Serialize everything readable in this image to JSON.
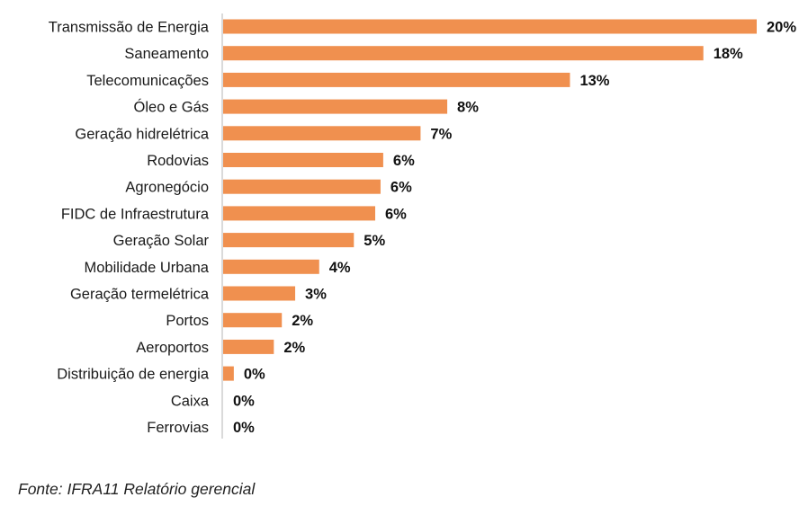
{
  "chart_data": {
    "type": "bar",
    "orientation": "horizontal",
    "categories": [
      "Transmissão de Energia",
      "Saneamento",
      "Telecomunicações",
      "Óleo e Gás",
      "Geração hidrelétrica",
      "Rodovias",
      "Agronegócio",
      "FIDC de Infraestrutura",
      "Geração Solar",
      "Mobilidade Urbana",
      "Geração termelétrica",
      "Portos",
      "Aeroportos",
      "Distribuição de energia",
      "Caixa",
      "Ferrovias"
    ],
    "values": [
      20.0,
      18.0,
      13.0,
      8.4,
      7.4,
      6.0,
      5.9,
      5.7,
      4.9,
      3.6,
      2.7,
      2.2,
      1.9,
      0.4,
      0.0,
      0.0
    ],
    "data_labels": [
      "20%",
      "18%",
      "13%",
      "8%",
      "7%",
      "6%",
      "6%",
      "6%",
      "5%",
      "4%",
      "3%",
      "2%",
      "2%",
      "0%",
      "0%",
      "0%"
    ],
    "xlim": [
      0,
      20
    ],
    "grid": false,
    "legend": "none",
    "bar_color": "#F0904F"
  },
  "source_note": "Fonte: IFRA11 Relatório gerencial"
}
